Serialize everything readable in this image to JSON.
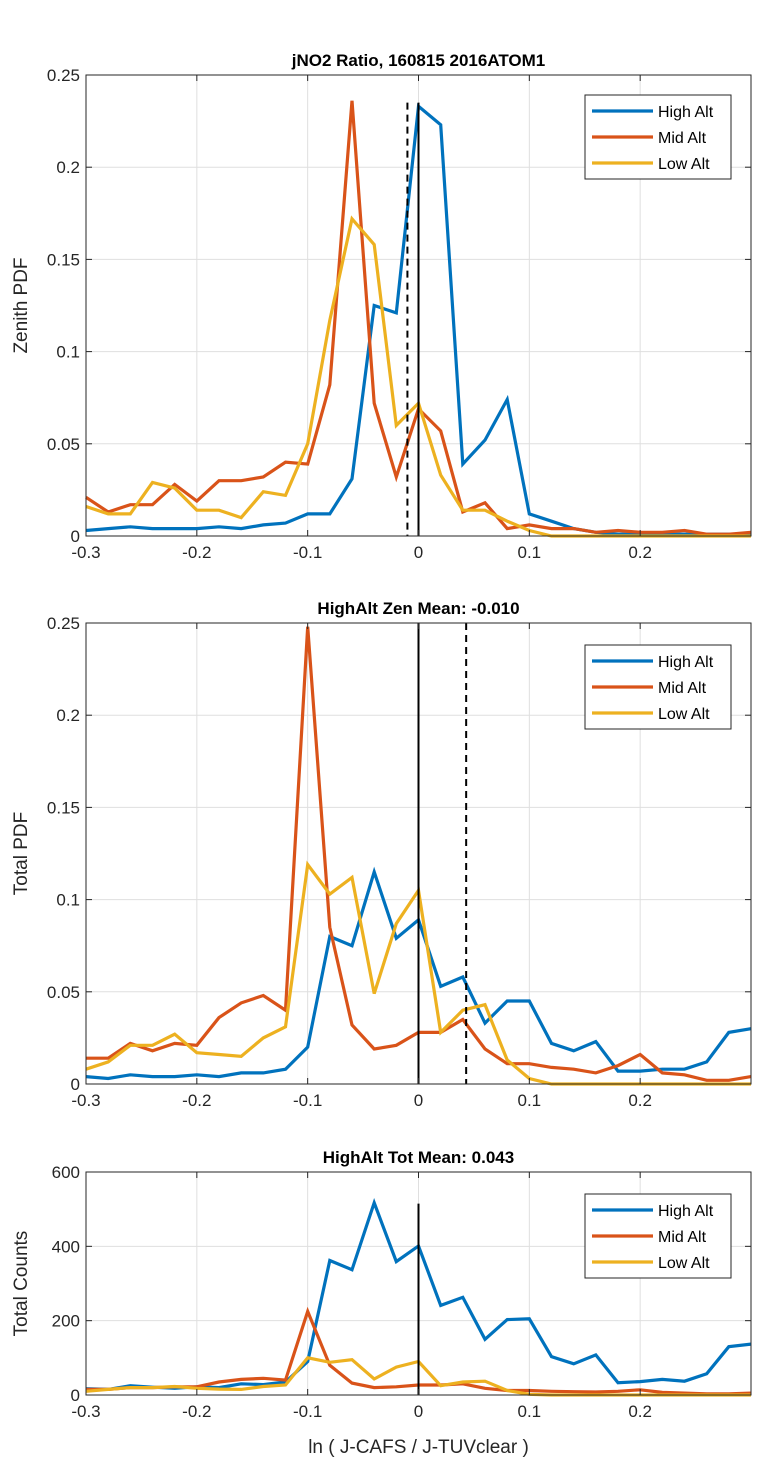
{
  "chart_data": [
    {
      "type": "line",
      "title": "jNO2 Ratio, 160815 2016ATOM1",
      "xlabel": "",
      "ylabel": "Zenith PDF",
      "xlim": [
        -0.3,
        0.3
      ],
      "ylim": [
        0,
        0.25
      ],
      "xticks": [
        -0.3,
        -0.2,
        -0.1,
        0,
        0.1,
        0.2
      ],
      "xtick_labels": [
        "-0.3",
        "-0.2",
        "-0.1",
        "0",
        "0.1",
        "0.2"
      ],
      "yticks": [
        0,
        0.05,
        0.1,
        0.15,
        0.2,
        0.25
      ],
      "ytick_labels": [
        "0",
        "0.05",
        "0.1",
        "0.15",
        "0.2",
        "0.25"
      ],
      "grid": true,
      "legend_position": "top-right",
      "x": [
        -0.3,
        -0.28,
        -0.26,
        -0.24,
        -0.22,
        -0.2,
        -0.18,
        -0.16,
        -0.14,
        -0.12,
        -0.1,
        -0.08,
        -0.06,
        -0.04,
        -0.02,
        0.0,
        0.02,
        0.04,
        0.06,
        0.08,
        0.1,
        0.12,
        0.14,
        0.16,
        0.18,
        0.2,
        0.22,
        0.24,
        0.26,
        0.28,
        0.3
      ],
      "series": [
        {
          "name": "High Alt",
          "color": "#0072BD",
          "values": [
            0.003,
            0.004,
            0.005,
            0.004,
            0.004,
            0.004,
            0.005,
            0.004,
            0.006,
            0.007,
            0.012,
            0.012,
            0.031,
            0.125,
            0.121,
            0.233,
            0.223,
            0.039,
            0.052,
            0.074,
            0.012,
            0.008,
            0.004,
            0.002,
            0.001,
            0.001,
            0.001,
            0.001,
            0.001,
            0.001,
            0.001
          ]
        },
        {
          "name": "Mid Alt",
          "color": "#D95319",
          "values": [
            0.021,
            0.013,
            0.017,
            0.017,
            0.028,
            0.019,
            0.03,
            0.03,
            0.032,
            0.04,
            0.039,
            0.082,
            0.236,
            0.072,
            0.032,
            0.069,
            0.057,
            0.013,
            0.018,
            0.004,
            0.006,
            0.004,
            0.004,
            0.002,
            0.003,
            0.002,
            0.002,
            0.003,
            0.001,
            0.001,
            0.002
          ]
        },
        {
          "name": "Low Alt",
          "color": "#EDB120",
          "values": [
            0.016,
            0.012,
            0.012,
            0.029,
            0.026,
            0.014,
            0.014,
            0.01,
            0.024,
            0.022,
            0.05,
            0.117,
            0.172,
            0.158,
            0.06,
            0.072,
            0.033,
            0.014,
            0.014,
            0.008,
            0.003,
            0.0,
            0.0,
            0.0,
            0.0,
            0.0,
            0.0,
            0.0,
            0.0,
            0.0,
            0.0
          ]
        }
      ],
      "vlines": [
        {
          "name": "zero-line",
          "x": 0,
          "style": "solid",
          "ymax": 0.235
        },
        {
          "name": "mean-line",
          "x": -0.01,
          "style": "dashed",
          "ymax": 0.235
        }
      ]
    },
    {
      "type": "line",
      "title": "HighAlt Zen Mean: -0.010",
      "xlabel": "",
      "ylabel": "Total PDF",
      "xlim": [
        -0.3,
        0.3
      ],
      "ylim": [
        0,
        0.25
      ],
      "xticks": [
        -0.3,
        -0.2,
        -0.1,
        0,
        0.1,
        0.2
      ],
      "xtick_labels": [
        "-0.3",
        "-0.2",
        "-0.1",
        "0",
        "0.1",
        "0.2"
      ],
      "yticks": [
        0,
        0.05,
        0.1,
        0.15,
        0.2,
        0.25
      ],
      "ytick_labels": [
        "0",
        "0.05",
        "0.1",
        "0.15",
        "0.2",
        "0.25"
      ],
      "grid": true,
      "legend_position": "top-right",
      "x": [
        -0.3,
        -0.28,
        -0.26,
        -0.24,
        -0.22,
        -0.2,
        -0.18,
        -0.16,
        -0.14,
        -0.12,
        -0.1,
        -0.08,
        -0.06,
        -0.04,
        -0.02,
        0.0,
        0.02,
        0.04,
        0.06,
        0.08,
        0.1,
        0.12,
        0.14,
        0.16,
        0.18,
        0.2,
        0.22,
        0.24,
        0.26,
        0.28,
        0.3
      ],
      "series": [
        {
          "name": "High Alt",
          "color": "#0072BD",
          "values": [
            0.004,
            0.003,
            0.005,
            0.004,
            0.004,
            0.005,
            0.004,
            0.006,
            0.006,
            0.008,
            0.02,
            0.08,
            0.075,
            0.115,
            0.079,
            0.089,
            0.053,
            0.058,
            0.033,
            0.045,
            0.045,
            0.022,
            0.018,
            0.023,
            0.007,
            0.007,
            0.008,
            0.008,
            0.012,
            0.028,
            0.03
          ]
        },
        {
          "name": "Mid Alt",
          "color": "#D95319",
          "values": [
            0.014,
            0.014,
            0.022,
            0.018,
            0.022,
            0.021,
            0.036,
            0.044,
            0.048,
            0.04,
            0.248,
            0.085,
            0.032,
            0.019,
            0.021,
            0.028,
            0.028,
            0.035,
            0.019,
            0.011,
            0.011,
            0.009,
            0.008,
            0.006,
            0.01,
            0.016,
            0.006,
            0.005,
            0.002,
            0.002,
            0.004
          ]
        },
        {
          "name": "Low Alt",
          "color": "#EDB120",
          "values": [
            0.008,
            0.012,
            0.021,
            0.021,
            0.027,
            0.017,
            0.016,
            0.015,
            0.025,
            0.031,
            0.119,
            0.103,
            0.112,
            0.049,
            0.087,
            0.105,
            0.028,
            0.04,
            0.043,
            0.013,
            0.003,
            0.0,
            0.0,
            0.0,
            0.0,
            0.0,
            0.0,
            0.0,
            0.0,
            0.0,
            0.0
          ]
        }
      ],
      "vlines": [
        {
          "name": "zero-line",
          "x": 0,
          "style": "solid",
          "ymax": 0.25
        },
        {
          "name": "mean-line",
          "x": 0.043,
          "style": "dashed",
          "ymax": 0.25
        }
      ]
    },
    {
      "type": "line",
      "title": "HighAlt Tot Mean: 0.043",
      "xlabel": "ln ( J-CAFS / J-TUVclear )",
      "ylabel": "Total Counts",
      "xlim": [
        -0.3,
        0.3
      ],
      "ylim": [
        0,
        600
      ],
      "xticks": [
        -0.3,
        -0.2,
        -0.1,
        0,
        0.1,
        0.2
      ],
      "xtick_labels": [
        "-0.3",
        "-0.2",
        "-0.1",
        "0",
        "0.1",
        "0.2"
      ],
      "yticks": [
        0,
        200,
        400,
        600
      ],
      "ytick_labels": [
        "0",
        "200",
        "400",
        "600"
      ],
      "grid": true,
      "legend_position": "top-right",
      "x": [
        -0.3,
        -0.28,
        -0.26,
        -0.24,
        -0.22,
        -0.2,
        -0.18,
        -0.16,
        -0.14,
        -0.12,
        -0.1,
        -0.08,
        -0.06,
        -0.04,
        -0.02,
        0.0,
        0.02,
        0.04,
        0.06,
        0.08,
        0.1,
        0.12,
        0.14,
        0.16,
        0.18,
        0.2,
        0.22,
        0.24,
        0.26,
        0.28,
        0.3
      ],
      "series": [
        {
          "name": "High Alt",
          "color": "#0072BD",
          "values": [
            17,
            15,
            25,
            21,
            18,
            22,
            20,
            30,
            28,
            35,
            90,
            362,
            337,
            517,
            359,
            401,
            241,
            263,
            150,
            203,
            205,
            103,
            84,
            108,
            33,
            36,
            42,
            37,
            57,
            130,
            137
          ]
        },
        {
          "name": "Mid Alt",
          "color": "#D95319",
          "values": [
            15,
            15,
            20,
            20,
            22,
            22,
            35,
            42,
            45,
            40,
            225,
            80,
            32,
            20,
            22,
            27,
            27,
            30,
            18,
            12,
            12,
            10,
            9,
            8,
            10,
            14,
            7,
            5,
            3,
            3,
            5
          ]
        },
        {
          "name": "Low Alt",
          "color": "#EDB120",
          "values": [
            10,
            15,
            20,
            20,
            23,
            18,
            16,
            15,
            23,
            27,
            100,
            88,
            95,
            43,
            75,
            90,
            25,
            35,
            37,
            12,
            2,
            0,
            0,
            0,
            0,
            0,
            0,
            0,
            0,
            0,
            0
          ]
        }
      ],
      "vlines": [
        {
          "name": "zero-line",
          "x": 0,
          "style": "solid",
          "ymax": 515
        }
      ]
    }
  ]
}
